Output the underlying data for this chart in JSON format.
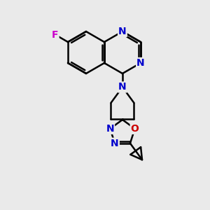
{
  "background_color": "#eaeaea",
  "bond_color": "#000000",
  "bond_width": 1.8,
  "atom_colors": {
    "N": "#0000cc",
    "O": "#cc0000",
    "F": "#cc00cc",
    "C": "#000000"
  },
  "font_size_atom": 10,
  "fig_size": [
    3.0,
    3.0
  ],
  "dpi": 100,
  "xlim": [
    0,
    10
  ],
  "ylim": [
    0,
    10
  ]
}
